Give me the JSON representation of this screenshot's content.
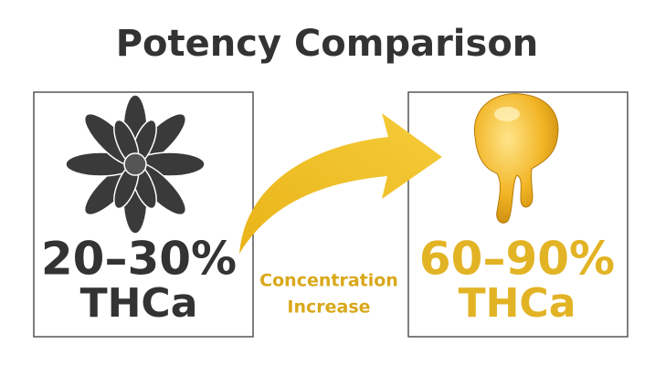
{
  "title": "Potency Comparison",
  "left": {
    "range": "20–30%",
    "label": "THCa"
  },
  "center": {
    "lines": [
      "Concentration",
      "Increase"
    ]
  },
  "right": {
    "range": "60–90%",
    "label": "THCa"
  }
}
